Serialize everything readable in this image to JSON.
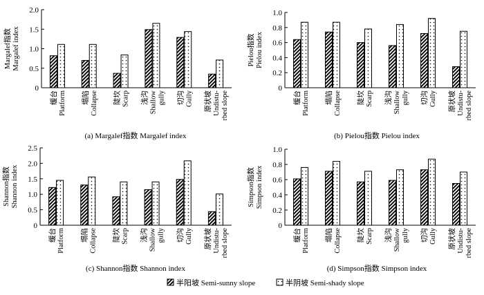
{
  "chart_data": [
    {
      "type": "bar",
      "caption": "(a) Margalef指数 Margalef index",
      "ylabel": [
        "Margalef指数",
        "Margalef index"
      ],
      "ylim": [
        0,
        2.0
      ],
      "yticks": [
        "0",
        "0.5",
        "1.0",
        "1.5",
        "2.0"
      ],
      "categories": [
        [
          "缓台",
          "Platform"
        ],
        [
          "塌陷",
          "Collapse"
        ],
        [
          "陡坎",
          "Scarp"
        ],
        [
          "浅沟",
          "Shallow",
          "gully"
        ],
        [
          "切沟",
          "Gully"
        ],
        [
          "原状坡",
          "Undistu-",
          "rbed slope"
        ]
      ],
      "series": [
        {
          "name": "半阳坡 Semi-sunny slope",
          "values": [
            0.82,
            0.7,
            0.37,
            1.49,
            1.29,
            0.35
          ]
        },
        {
          "name": "半阴坡 Semi-shady slope",
          "values": [
            1.11,
            1.11,
            0.84,
            1.65,
            1.44,
            0.71
          ]
        }
      ]
    },
    {
      "type": "bar",
      "caption": "(b) Pielou指数 Pielou index",
      "ylabel": [
        "Pielou指数",
        "Pielou index"
      ],
      "ylim": [
        0,
        1.0
      ],
      "yticks": [
        "0",
        "0.2",
        "0.4",
        "0.6",
        "0.8",
        "1.0"
      ],
      "categories": [
        [
          "缓台",
          "Platform"
        ],
        [
          "塌陷",
          "Collapse"
        ],
        [
          "陡坎",
          "Scarp"
        ],
        [
          "浅沟",
          "Shallow",
          "gully"
        ],
        [
          "切沟",
          "Gully"
        ],
        [
          "原状坡",
          "Undistu-",
          "rbed slope"
        ]
      ],
      "series": [
        {
          "name": "半阳坡 Semi-sunny slope",
          "values": [
            0.64,
            0.74,
            0.6,
            0.56,
            0.72,
            0.28
          ]
        },
        {
          "name": "半阴坡 Semi-shady slope",
          "values": [
            0.87,
            0.87,
            0.78,
            0.84,
            0.92,
            0.75
          ]
        }
      ]
    },
    {
      "type": "bar",
      "caption": "(c) Shannon指数 Shannon index",
      "ylabel": [
        "Shannon指数",
        "Shannon index"
      ],
      "ylim": [
        0,
        2.5
      ],
      "yticks": [
        "0",
        "0.5",
        "1.0",
        "1.5",
        "2.0",
        "2.5"
      ],
      "categories": [
        [
          "缓台",
          "Platform"
        ],
        [
          "塌陷",
          "Collapse"
        ],
        [
          "陡坎",
          "Scarp"
        ],
        [
          "浅沟",
          "Shallow",
          "gully"
        ],
        [
          "切沟",
          "Gully"
        ],
        [
          "原状坡",
          "Undistu-",
          "rbed slope"
        ]
      ],
      "series": [
        {
          "name": "半阳坡 Semi-sunny slope",
          "values": [
            1.22,
            1.3,
            0.92,
            1.15,
            1.48,
            0.44
          ]
        },
        {
          "name": "半阴坡 Semi-shady slope",
          "values": [
            1.45,
            1.56,
            1.4,
            1.4,
            2.08,
            1.01
          ]
        }
      ]
    },
    {
      "type": "bar",
      "caption": "(d) Simpson指数 Simpson index",
      "ylabel": [
        "Simpson指数",
        "Simpson index"
      ],
      "ylim": [
        0,
        1.0
      ],
      "yticks": [
        "0",
        "0.2",
        "0.4",
        "0.6",
        "0.8",
        "1.0"
      ],
      "categories": [
        [
          "缓台",
          "Platform"
        ],
        [
          "塌陷",
          "Collapse"
        ],
        [
          "陡坎",
          "Scarp"
        ],
        [
          "浅沟",
          "Shallow",
          "gully"
        ],
        [
          "切沟",
          "Gully"
        ],
        [
          "原状坡",
          "Undistu-",
          "rbed slope"
        ]
      ],
      "series": [
        {
          "name": "半阳坡 Semi-sunny slope",
          "values": [
            0.61,
            0.71,
            0.57,
            0.59,
            0.73,
            0.55
          ]
        },
        {
          "name": "半阴坡 Semi-shady slope",
          "values": [
            0.76,
            0.84,
            0.71,
            0.73,
            0.87,
            0.7
          ]
        }
      ]
    }
  ],
  "legend": {
    "items": [
      {
        "label": "半阳坡 Semi-sunny slope",
        "pattern": "diagonal-hatch"
      },
      {
        "label": "半阴坡 Semi-shady slope",
        "pattern": "dotted"
      }
    ]
  }
}
